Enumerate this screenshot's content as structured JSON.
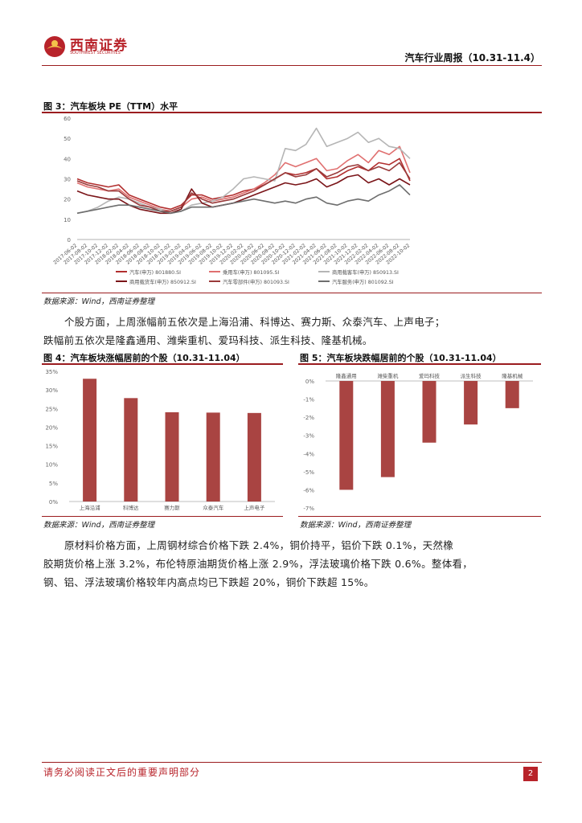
{
  "header": {
    "logo_text": "西南证券",
    "logo_sub": "SOUTHWEST SECURITIES",
    "report_title": "汽车行业周报（10.31-11.4）"
  },
  "figure3": {
    "title": "图 3：汽车板块 PE（TTM）水平",
    "source": "数据来源：Wind，西南证券整理",
    "chart_data": {
      "type": "line",
      "title": "",
      "ylim": [
        0,
        60
      ],
      "yticks": [
        "0",
        "10",
        "20",
        "30",
        "40",
        "50",
        "60"
      ],
      "xticks": [
        "2017-06-02",
        "2017-08-02",
        "2017-10-02",
        "2017-12-02",
        "2018-02-02",
        "2018-04-02",
        "2018-06-02",
        "2018-08-02",
        "2018-10-02",
        "2018-12-02",
        "2019-02-02",
        "2019-04-02",
        "2019-06-02",
        "2019-08-02",
        "2019-10-02",
        "2019-12-02",
        "2020-02-02",
        "2020-04-02",
        "2020-06-02",
        "2020-08-02",
        "2020-10-02",
        "2020-12-02",
        "2021-02-02",
        "2021-04-02",
        "2021-06-02",
        "2021-08-02",
        "2021-10-02",
        "2021-12-02",
        "2022-02-02",
        "2022-04-02",
        "2022-06-02",
        "2022-08-02",
        "2022-10-02"
      ],
      "series": [
        {
          "name": "汽车(申万) 801880.SI",
          "color": "#b22f2f",
          "values": [
            30,
            28,
            27,
            26,
            27,
            22,
            20,
            18,
            16,
            15,
            17,
            22,
            22,
            20,
            21,
            22,
            24,
            25,
            27,
            30,
            33,
            32,
            33,
            35,
            30,
            31,
            34,
            36,
            34,
            38,
            37,
            40,
            29
          ]
        },
        {
          "name": "乘用车(申万) 801095.SI",
          "color": "#e07070",
          "values": [
            28,
            26,
            25,
            24,
            25,
            21,
            19,
            17,
            15,
            14,
            16,
            20,
            21,
            19,
            20,
            21,
            23,
            25,
            28,
            32,
            38,
            36,
            38,
            40,
            34,
            35,
            39,
            42,
            38,
            44,
            42,
            46,
            33
          ]
        },
        {
          "name": "商用载客车(申万) 850913.SI",
          "color": "#b5b5b5",
          "values": [
            13,
            14,
            16,
            19,
            21,
            20,
            18,
            16,
            15,
            13,
            14,
            17,
            18,
            19,
            21,
            25,
            30,
            31,
            30,
            29,
            45,
            44,
            47,
            55,
            46,
            48,
            50,
            53,
            48,
            50,
            46,
            45,
            40
          ]
        },
        {
          "name": "商用载货车(申万) 850912.SI",
          "color": "#7a1418",
          "values": [
            24,
            22,
            21,
            20,
            20,
            17,
            15,
            14,
            13,
            13,
            15,
            25,
            18,
            16,
            17,
            18,
            20,
            22,
            24,
            26,
            28,
            27,
            28,
            30,
            26,
            28,
            31,
            32,
            28,
            30,
            27,
            30,
            27
          ]
        },
        {
          "name": "汽车零部件(申万) 801093.SI",
          "color": "#9a3a3a",
          "values": [
            29,
            27,
            26,
            24,
            24,
            20,
            17,
            16,
            14,
            14,
            16,
            23,
            20,
            18,
            19,
            20,
            22,
            24,
            27,
            30,
            33,
            31,
            32,
            35,
            31,
            33,
            36,
            37,
            34,
            36,
            34,
            38,
            30
          ]
        },
        {
          "name": "汽车服务(申万) 801092.SI",
          "color": "#6e6e6e",
          "values": [
            13,
            14,
            15,
            16,
            17,
            17,
            16,
            15,
            14,
            13,
            14,
            16,
            16,
            16,
            17,
            18,
            19,
            20,
            19,
            18,
            19,
            18,
            20,
            21,
            18,
            17,
            19,
            20,
            19,
            22,
            24,
            27,
            22
          ]
        }
      ]
    }
  },
  "paragraph1": {
    "line1": "个股方面，上周涨幅前五依次是上海沿浦、科博达、赛力斯、众泰汽车、上声电子；",
    "line2": "跌幅前五依次是隆鑫通用、潍柴重机、爱玛科技、派生科技、隆基机械。"
  },
  "figure4": {
    "title": "图 4：汽车板块涨幅居前的个股（10.31-11.04）",
    "source": "数据来源：Wind，西南证券整理",
    "chart_data": {
      "type": "bar",
      "title": "",
      "categories": [
        "上海沿浦",
        "科博达",
        "赛力斯",
        "众泰汽车",
        "上声电子"
      ],
      "values": [
        33.0,
        27.8,
        24.0,
        23.9,
        23.8
      ],
      "unit": "%",
      "ylim": [
        0,
        35
      ],
      "yticks": [
        "0%",
        "5%",
        "10%",
        "15%",
        "20%",
        "25%",
        "30%",
        "35%"
      ],
      "color": "#a94442"
    }
  },
  "figure5": {
    "title": "图 5：汽车板块跌幅居前的个股（10.31-11.04）",
    "source": "数据来源：Wind，西南证券整理",
    "chart_data": {
      "type": "bar",
      "title": "",
      "categories": [
        "隆鑫通用",
        "潍柴重机",
        "爱玛科技",
        "派生科技",
        "隆基机械"
      ],
      "values": [
        -6.0,
        -5.3,
        -3.4,
        -2.4,
        -1.5
      ],
      "unit": "%",
      "ylim": [
        -7,
        0
      ],
      "yticks": [
        "0%",
        "-1%",
        "-2%",
        "-3%",
        "-4%",
        "-5%",
        "-6%",
        "-7%"
      ],
      "color": "#a94442"
    }
  },
  "paragraph2": {
    "line1": "原材料价格方面，上周钢材综合价格下跌 2.4%，铜价持平，铝价下跌 0.1%，天然橡",
    "line2": "胶期货价格上涨 3.2%，布伦特原油期货价格上涨 2.9%，浮法玻璃价格下跌 0.6%。整体看，",
    "line3": "钢、铝、浮法玻璃价格较年内高点均已下跌超 20%，铜价下跌超 15%。"
  },
  "footer": {
    "disclaimer": "请务必阅读正文后的重要声明部分",
    "page_number": "2"
  }
}
